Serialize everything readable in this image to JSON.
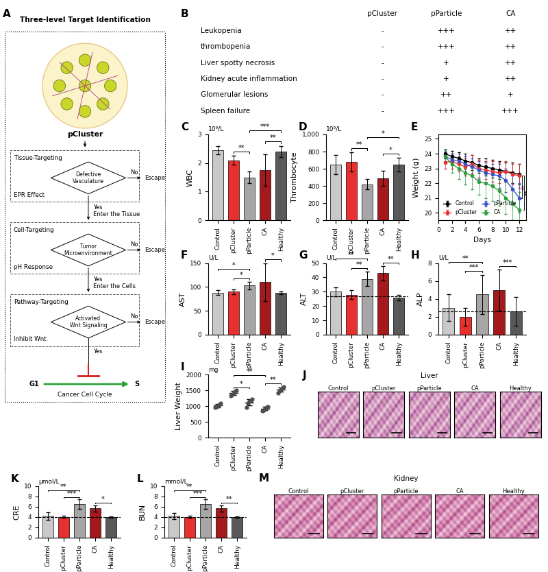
{
  "diagram": {
    "panel": "A",
    "title": "Three-level Target Identification",
    "top_label": "pCluster",
    "levels": [
      {
        "name": "Tissue-Targeting",
        "decision": [
          "Defective",
          "Vasculature"
        ],
        "mechanism": "EPR Effect",
        "no": "No",
        "escape": "Escape",
        "yes": "Yes",
        "result": "Enter the Tissue"
      },
      {
        "name": "Cell-Targeting",
        "decision": [
          "Tumor",
          "Microenvironment"
        ],
        "mechanism": "pH Response",
        "no": "No",
        "escape": "Escape",
        "yes": "Yes",
        "result": "Enter the Cells"
      },
      {
        "name": "Pathway-Targeting",
        "decision": [
          "Activated",
          "Wnt Signaling"
        ],
        "mechanism": "Inhibit Wnt",
        "no": "No",
        "escape": "Escape",
        "yes": "Yes"
      }
    ],
    "final": {
      "from": "G1",
      "to": "S",
      "label": "Cancer Cell Cycle"
    }
  },
  "table": {
    "panel": "B",
    "columns": [
      "pCluster",
      "pParticle",
      "CA"
    ],
    "rows": [
      [
        "Leukopenia",
        "-",
        "+++",
        "++"
      ],
      [
        "thrombopenia",
        "-",
        "+++",
        "++"
      ],
      [
        "Liver spotty necrosis",
        "-",
        "+",
        "++"
      ],
      [
        "Kidney acute inflammation",
        "-",
        "+",
        "++"
      ],
      [
        "Glomerular lesions",
        "-",
        "++",
        "+"
      ],
      [
        "Spleen failure",
        "-",
        "+++",
        "+++"
      ]
    ]
  },
  "chart_data": [
    {
      "panel": "C",
      "type": "bar",
      "title": "10⁹/L",
      "y_label": "WBC",
      "categories": [
        "Control",
        "pCluster",
        "pParticle",
        "CA",
        "Healthy"
      ],
      "values": [
        2.45,
        2.1,
        1.5,
        1.75,
        2.4
      ],
      "errors": [
        0.15,
        0.15,
        0.2,
        0.55,
        0.2
      ],
      "colors": [
        "#c9c9c9",
        "#e8312f",
        "#a6a6a6",
        "#a3191c",
        "#595959"
      ],
      "ylim": [
        0,
        3
      ],
      "yticks": [
        0,
        1,
        2,
        3
      ],
      "significance": [
        {
          "from": "pCluster",
          "to": "pParticle",
          "label": "**"
        },
        {
          "from": "CA",
          "to": "Healthy",
          "label": "**"
        },
        {
          "from": "pParticle",
          "to": "Healthy",
          "label": "***"
        }
      ]
    },
    {
      "panel": "D",
      "type": "bar",
      "title": "10⁹/L",
      "y_label": "Thrombocyte",
      "categories": [
        "Control",
        "pCluster",
        "pParticle",
        "CA",
        "Healthy"
      ],
      "values": [
        650,
        680,
        420,
        490,
        650
      ],
      "errors": [
        110,
        110,
        60,
        90,
        80
      ],
      "colors": [
        "#c9c9c9",
        "#e8312f",
        "#a6a6a6",
        "#a3191c",
        "#595959"
      ],
      "ylim": [
        0,
        1000
      ],
      "yticks": [
        0,
        200,
        400,
        600,
        800,
        {
          "value": 1000,
          "label": "1,000"
        }
      ],
      "significance": [
        {
          "from": "pCluster",
          "to": "pParticle",
          "label": "**"
        },
        {
          "from": "CA",
          "to": "Healthy",
          "label": "*"
        },
        {
          "from": "pParticle",
          "to": "Healthy",
          "label": "*"
        }
      ]
    },
    {
      "panel": "E",
      "type": "line",
      "x_label": "Days",
      "y_label": "Weight (g)",
      "x": [
        1,
        2,
        3,
        4,
        5,
        6,
        7,
        8,
        9,
        10,
        11,
        12
      ],
      "series": [
        {
          "name": "Control",
          "color": "#000000",
          "marker": "circle",
          "values": [
            24.0,
            23.8,
            23.7,
            23.5,
            23.4,
            23.2,
            23.1,
            23.0,
            22.9,
            22.8,
            22.7,
            22.6
          ],
          "errors": [
            0.3,
            0.4,
            0.4,
            0.5,
            0.5,
            0.5,
            0.6,
            0.6,
            0.6,
            0.6,
            0.7,
            0.7
          ]
        },
        {
          "name": "pCluster",
          "color": "#e8312f",
          "marker": "circle",
          "values": [
            23.4,
            23.5,
            23.3,
            23.1,
            23.3,
            23.0,
            22.9,
            22.8,
            22.7,
            22.8,
            22.6,
            22.5
          ],
          "errors": [
            0.4,
            0.5,
            0.5,
            0.6,
            0.6,
            0.6,
            0.6,
            0.7,
            0.7,
            0.7,
            0.7,
            0.8
          ]
        },
        {
          "name": "pParticle",
          "color": "#3a50c9",
          "marker": "circle",
          "values": [
            23.8,
            23.6,
            23.5,
            23.3,
            23.1,
            22.9,
            22.7,
            22.6,
            22.5,
            22.2,
            21.6,
            21.0
          ],
          "errors": [
            0.3,
            0.4,
            0.5,
            0.5,
            0.6,
            0.6,
            0.7,
            0.7,
            0.8,
            0.8,
            0.9,
            1.0
          ]
        },
        {
          "name": "CA",
          "color": "#2e9e3a",
          "marker": "circle",
          "values": [
            23.8,
            23.3,
            23.0,
            22.7,
            22.5,
            22.1,
            22.0,
            21.8,
            21.5,
            21.0,
            20.6,
            20.2
          ],
          "errors": [
            0.4,
            0.6,
            0.7,
            0.8,
            0.9,
            0.9,
            1.0,
            1.0,
            1.0,
            1.1,
            1.1,
            1.2
          ]
        }
      ],
      "xlim": [
        0,
        13
      ],
      "xticks": [
        0,
        2,
        4,
        6,
        8,
        10,
        12
      ],
      "ylim": [
        19.5,
        25.3
      ],
      "yticks": [
        20,
        21,
        22,
        23,
        24,
        25
      ],
      "legend": "lower left",
      "significance": [
        {
          "from": "pCluster",
          "to": "pParticle",
          "label": "**"
        },
        {
          "from": "pCluster",
          "to": "CA",
          "label": "**"
        }
      ]
    },
    {
      "panel": "F",
      "type": "bar",
      "title": "U/L",
      "y_label": "AST",
      "categories": [
        "Control",
        "pCluster",
        "pParticle",
        "CA",
        "Healthy"
      ],
      "values": [
        88,
        90,
        103,
        110,
        88
      ],
      "errors": [
        5,
        5,
        8,
        40,
        3
      ],
      "colors": [
        "#c9c9c9",
        "#e8312f",
        "#a6a6a6",
        "#a3191c",
        "#595959"
      ],
      "ylim": [
        0,
        150
      ],
      "yticks": [
        0,
        50,
        100,
        150
      ],
      "significance": [
        {
          "from": "pCluster",
          "to": "pParticle",
          "label": "*"
        },
        {
          "from": "Control",
          "to": "pParticle",
          "label": "*"
        },
        {
          "from": "CA",
          "to": "Healthy",
          "label": "*"
        }
      ]
    },
    {
      "panel": "G",
      "type": "bar",
      "title": "U/L",
      "y_label": "ALT",
      "categories": [
        "Control",
        "pCluster",
        "pParticle",
        "CA",
        "Healthy"
      ],
      "values": [
        30,
        28,
        39,
        43,
        26
      ],
      "errors": [
        3,
        3,
        5,
        5,
        2
      ],
      "colors": [
        "#c9c9c9",
        "#e8312f",
        "#a6a6a6",
        "#a3191c",
        "#595959"
      ],
      "ylim": [
        0,
        50
      ],
      "yticks": [
        0,
        10,
        20,
        30,
        40,
        50
      ],
      "reference_line": 27,
      "significance": [
        {
          "from": "pCluster",
          "to": "pParticle",
          "label": "**"
        },
        {
          "from": "Control",
          "to": "pParticle",
          "label": "**"
        },
        {
          "from": "CA",
          "to": "Healthy",
          "label": "**"
        }
      ]
    },
    {
      "panel": "H",
      "type": "bar",
      "title": "U/L",
      "y_label": "ALP",
      "categories": [
        "Control",
        "pCluster",
        "pParticle",
        "CA",
        "Healthy"
      ],
      "values": [
        3.0,
        2.0,
        4.5,
        5.0,
        2.6
      ],
      "errors": [
        1.5,
        1.0,
        2.2,
        2.3,
        1.6
      ],
      "colors": [
        "#c9c9c9",
        "#e8312f",
        "#a6a6a6",
        "#a3191c",
        "#595959"
      ],
      "ylim": [
        0,
        8
      ],
      "yticks": [
        0,
        2,
        4,
        6,
        8
      ],
      "reference_line": 2.6,
      "significance": [
        {
          "from": "pCluster",
          "to": "pParticle",
          "label": "***"
        },
        {
          "from": "Control",
          "to": "pParticle",
          "label": "**"
        },
        {
          "from": "CA",
          "to": "Healthy",
          "label": "***"
        }
      ]
    },
    {
      "panel": "I",
      "type": "scatter",
      "title": "mg",
      "y_label": "Liver Weight",
      "categories": [
        "Control",
        "pCluster",
        "pParticle",
        "CA",
        "Healthy"
      ],
      "points": [
        [
          960,
          990,
          1010,
          1040,
          1080
        ],
        [
          1330,
          1380,
          1400,
          1460,
          1500
        ],
        [
          960,
          1080,
          1150,
          1180,
          1220
        ],
        [
          850,
          880,
          920,
          960,
          990
        ],
        [
          1420,
          1480,
          1520,
          1560,
          1620
        ]
      ],
      "values": [
        1016,
        1414,
        1118,
        920,
        1520
      ],
      "errors": [
        46,
        63,
        100,
        55,
        68
      ],
      "color": "#4d4d4d",
      "ylim": [
        0,
        2000
      ],
      "yticks": [
        0,
        500,
        1000,
        1500,
        2000
      ],
      "significance": [
        {
          "from": "pCluster",
          "to": "pParticle",
          "label": "*"
        },
        {
          "from": "CA",
          "to": "Healthy",
          "label": "**"
        },
        {
          "from": "pCluster",
          "to": "CA",
          "label": "**"
        }
      ]
    },
    {
      "panel": "K",
      "type": "bar",
      "title": "μmol/L",
      "y_label": "CRE",
      "categories": [
        "Control",
        "pCluster",
        "pParticle",
        "CA",
        "Healthy"
      ],
      "values": [
        4.2,
        4.0,
        6.5,
        5.7,
        4.0
      ],
      "errors": [
        0.7,
        0.2,
        0.9,
        0.6,
        0.1
      ],
      "colors": [
        "#c9c9c9",
        "#e8312f",
        "#a6a6a6",
        "#a3191c",
        "#595959"
      ],
      "ylim": [
        0,
        10
      ],
      "yticks": [
        0,
        2,
        4,
        6,
        8,
        10
      ],
      "reference_line": 4.0,
      "significance": [
        {
          "from": "pCluster",
          "to": "pParticle",
          "label": "***"
        },
        {
          "from": "Control",
          "to": "pParticle",
          "label": "**"
        },
        {
          "from": "CA",
          "to": "Healthy",
          "label": "*"
        }
      ]
    },
    {
      "panel": "L",
      "type": "bar",
      "title": "mmol/L",
      "y_label": "BUN",
      "categories": [
        "Control",
        "pCluster",
        "pParticle",
        "CA",
        "Healthy"
      ],
      "values": [
        4.2,
        4.0,
        6.5,
        5.7,
        4.0
      ],
      "errors": [
        0.6,
        0.2,
        0.9,
        0.6,
        0.1
      ],
      "colors": [
        "#c9c9c9",
        "#e8312f",
        "#a6a6a6",
        "#a3191c",
        "#595959"
      ],
      "ylim": [
        0,
        10
      ],
      "yticks": [
        0,
        2,
        4,
        6,
        8,
        10
      ],
      "reference_line": 4.0,
      "significance": [
        {
          "from": "pCluster",
          "to": "pParticle",
          "label": "***"
        },
        {
          "from": "Control",
          "to": "pParticle",
          "label": "**"
        },
        {
          "from": "CA",
          "to": "Healthy",
          "label": "**"
        }
      ]
    }
  ],
  "images": [
    {
      "panel": "J",
      "title": "Liver",
      "labels": [
        "Control",
        "pCluster",
        "pParticle",
        "CA",
        "Healthy"
      ]
    },
    {
      "panel": "M",
      "title": "Kidney",
      "labels": [
        "Control",
        "pCluster",
        "pParticle",
        "CA",
        "Healthy"
      ]
    }
  ]
}
